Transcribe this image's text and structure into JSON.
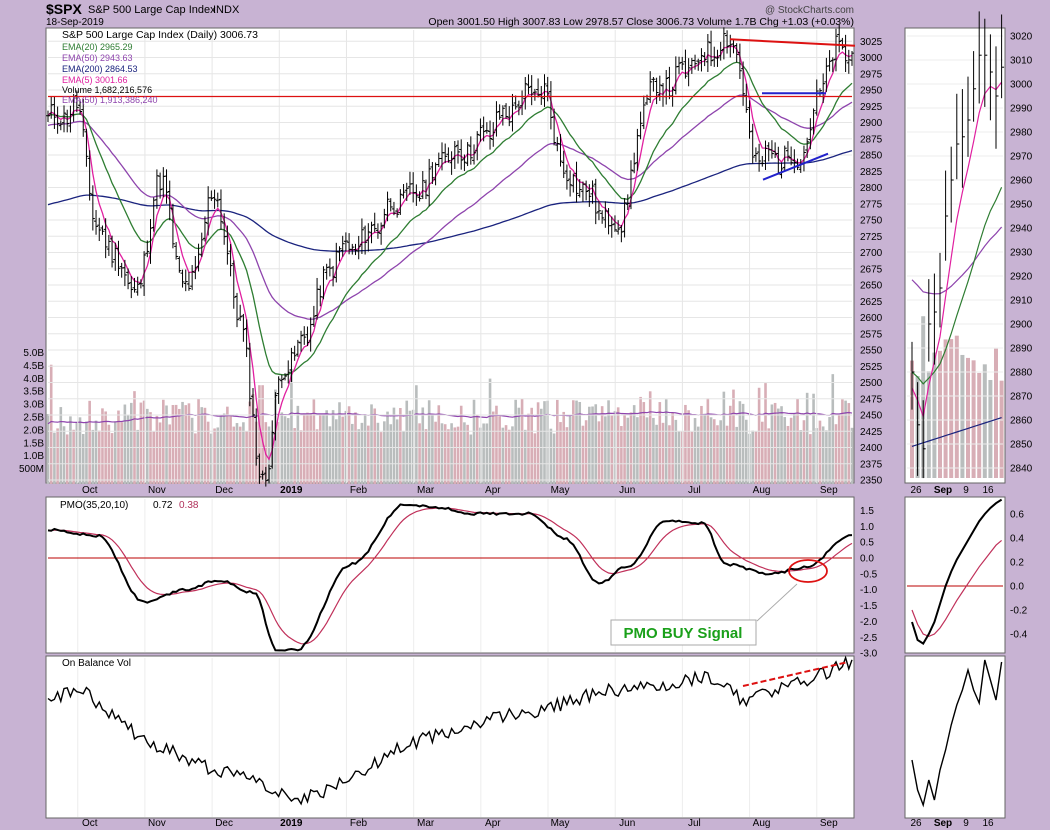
{
  "header": {
    "symbol": "$SPX",
    "name": "S&P 500 Large Cap Index",
    "exchange": "INDX",
    "date": "18-Sep-2019",
    "watermark": "@ StockCharts.com",
    "ohlc": "Open 3001.50  High 3007.83  Low 2978.57  Close 3006.73  Volume 1.7B  Chg +1.03 (+0.03%)"
  },
  "legend": {
    "title": "S&P 500 Large Cap Index (Daily) 3006.73",
    "ema20": "EMA(20) 2965.29",
    "ema50": "EMA(50) 2943.63",
    "ema200": "EMA(200) 2864.53",
    "ema5": "EMA(5) 3001.66",
    "volume": "Volume 1,682,216,576",
    "vema50": "EMA(50) 1,913,386,240"
  },
  "pmo": {
    "label": "PMO(35,20,10)",
    "value1": "0.72",
    "value2": "0.38",
    "annotation": "PMO BUY Signal"
  },
  "obv": {
    "label": "On Balance Vol"
  },
  "colors": {
    "ema20": "#2e7d32",
    "ema50": "#8e44ad",
    "ema200": "#1a237e",
    "ema5": "#e020a0",
    "red": "#dd1111",
    "blue": "#2222cc",
    "green_text": "#1aa01a"
  },
  "chart_data": [
    {
      "type": "ohlc",
      "title": "S&P 500 Large Cap Index (Daily)",
      "ylim": [
        2340,
        3035
      ],
      "y_ticks": [
        2350,
        2375,
        2400,
        2425,
        2450,
        2475,
        2500,
        2525,
        2550,
        2575,
        2600,
        2625,
        2650,
        2675,
        2700,
        2725,
        2750,
        2775,
        2800,
        2825,
        2850,
        2875,
        2900,
        2925,
        2950,
        2975,
        3000,
        3025
      ],
      "x_labels": [
        "Oct",
        "Nov",
        "Dec",
        "2019",
        "Feb",
        "Mar",
        "Apr",
        "May",
        "Jun",
        "Jul",
        "Aug",
        "Sep"
      ],
      "volume_ticks": [
        "5.0B",
        "4.5B",
        "4.0B",
        "3.5B",
        "3.0B",
        "2.5B",
        "2.0B",
        "1.5B",
        "1.0B",
        "500M"
      ],
      "close_approx": [
        [
          "2018-09-18",
          2905
        ],
        [
          "2018-10-01",
          2920
        ],
        [
          "2018-10-11",
          2728
        ],
        [
          "2018-10-29",
          2642
        ],
        [
          "2018-11-07",
          2813
        ],
        [
          "2018-11-20",
          2641
        ],
        [
          "2018-12-03",
          2790
        ],
        [
          "2018-12-14",
          2600
        ],
        [
          "2018-12-24",
          2351
        ],
        [
          "2019-01-04",
          2531
        ],
        [
          "2019-01-31",
          2704
        ],
        [
          "2019-02-28",
          2784
        ],
        [
          "2019-03-21",
          2854
        ],
        [
          "2019-04-30",
          2946
        ],
        [
          "2019-05-13",
          2812
        ],
        [
          "2019-06-03",
          2744
        ],
        [
          "2019-06-20",
          2954
        ],
        [
          "2019-07-26",
          3025
        ],
        [
          "2019-08-05",
          2844
        ],
        [
          "2019-08-23",
          2847
        ],
        [
          "2019-09-12",
          3009
        ],
        [
          "2019-09-18",
          3007
        ]
      ]
    },
    {
      "type": "line",
      "title": "PMO(35,20,10)",
      "ylim": [
        -3.0,
        1.8
      ],
      "y_ticks": [
        1.5,
        1.0,
        0.5,
        0.0,
        -0.5,
        -1.0,
        -1.5,
        -2.0,
        -2.5,
        -3.0
      ],
      "series": [
        {
          "name": "PMO",
          "value": 0.72
        },
        {
          "name": "Signal",
          "value": 0.38
        }
      ]
    },
    {
      "type": "line",
      "title": "On Balance Vol"
    },
    {
      "type": "ohlc",
      "title": "Inset (Aug 26 - Sep 18)",
      "ylim": [
        2835,
        3025
      ],
      "y_ticks": [
        2840,
        2850,
        2860,
        2870,
        2880,
        2890,
        2900,
        2910,
        2920,
        2930,
        2940,
        2950,
        2960,
        2970,
        2980,
        2990,
        3000,
        3010,
        3020
      ],
      "x_labels": [
        "26",
        "Sep",
        "9",
        "16"
      ],
      "pmo_ticks": [
        0.6,
        0.4,
        0.2,
        0.0,
        -0.2,
        -0.4
      ]
    }
  ]
}
